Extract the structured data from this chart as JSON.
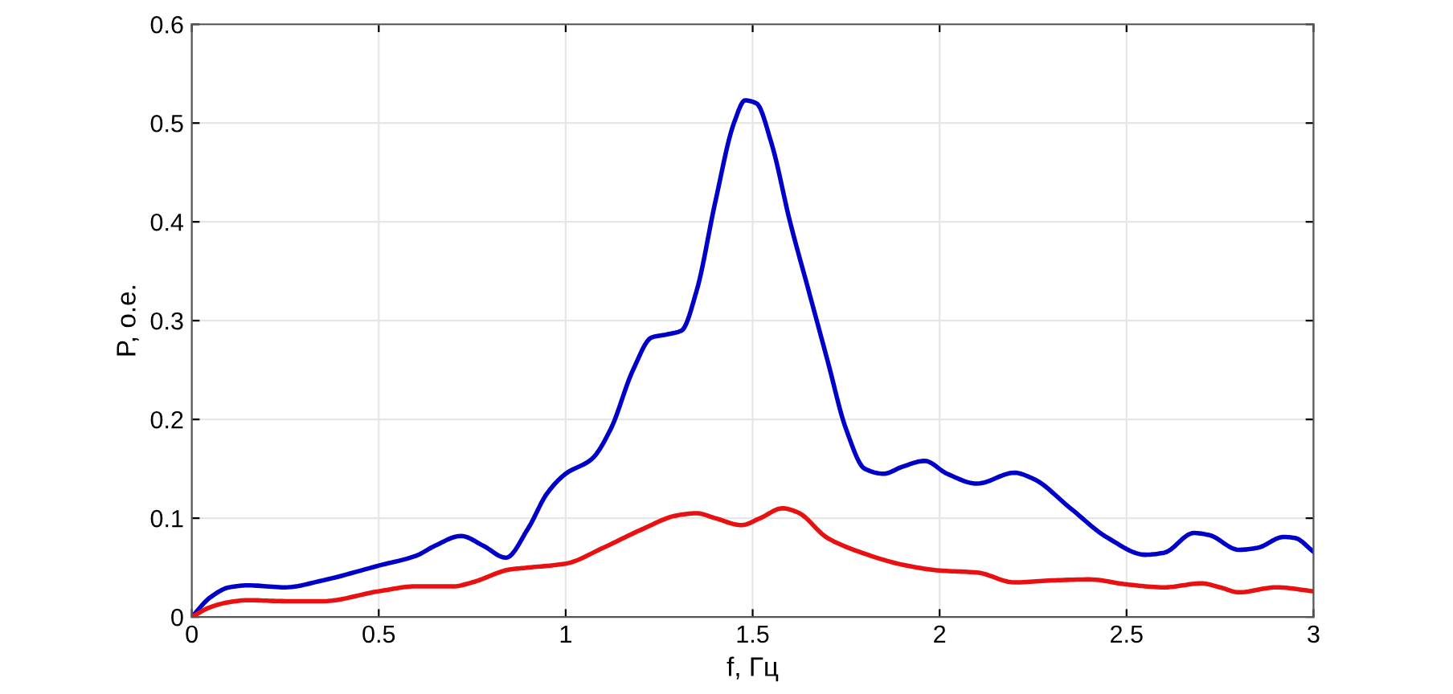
{
  "chart_data": {
    "type": "line",
    "xlabel": "f, Гц",
    "ylabel": "P, о.е.",
    "xlim": [
      0,
      3
    ],
    "ylim": [
      0,
      0.6
    ],
    "xticks": [
      0,
      0.5,
      1,
      1.5,
      2,
      2.5,
      3
    ],
    "yticks": [
      0,
      0.1,
      0.2,
      0.3,
      0.4,
      0.5,
      0.6
    ],
    "grid": true,
    "marker": "none",
    "line_style": "solid",
    "series": [
      {
        "color": "#0000c8",
        "x": [
          0,
          0.05,
          0.1,
          0.15,
          0.25,
          0.35,
          0.5,
          0.6,
          0.65,
          0.72,
          0.78,
          0.84,
          0.9,
          0.95,
          1.0,
          1.07,
          1.12,
          1.18,
          1.23,
          1.27,
          1.31,
          1.35,
          1.4,
          1.45,
          1.48,
          1.51,
          1.55,
          1.6,
          1.65,
          1.7,
          1.75,
          1.8,
          1.85,
          1.9,
          1.96,
          2.02,
          2.1,
          2.2,
          2.25,
          2.35,
          2.45,
          2.55,
          2.6,
          2.68,
          2.72,
          2.8,
          2.85,
          2.92,
          2.95,
          3.0
        ],
        "values": [
          0,
          0.02,
          0.03,
          0.032,
          0.03,
          0.037,
          0.052,
          0.062,
          0.072,
          0.082,
          0.072,
          0.06,
          0.09,
          0.125,
          0.145,
          0.16,
          0.19,
          0.25,
          0.283,
          0.286,
          0.29,
          0.33,
          0.42,
          0.5,
          0.523,
          0.52,
          0.48,
          0.4,
          0.33,
          0.26,
          0.19,
          0.15,
          0.145,
          0.152,
          0.158,
          0.145,
          0.135,
          0.146,
          0.14,
          0.11,
          0.08,
          0.063,
          0.065,
          0.085,
          0.083,
          0.068,
          0.07,
          0.081,
          0.08,
          0.066
        ]
      },
      {
        "color": "#e81010",
        "x": [
          0,
          0.05,
          0.1,
          0.15,
          0.25,
          0.35,
          0.5,
          0.6,
          0.7,
          0.75,
          0.85,
          0.9,
          1.0,
          1.1,
          1.2,
          1.3,
          1.35,
          1.4,
          1.47,
          1.52,
          1.58,
          1.62,
          1.7,
          1.8,
          1.9,
          2.0,
          2.1,
          2.2,
          2.3,
          2.4,
          2.5,
          2.6,
          2.7,
          2.75,
          2.8,
          2.9,
          3.0
        ],
        "values": [
          0,
          0.01,
          0.015,
          0.017,
          0.016,
          0.016,
          0.026,
          0.031,
          0.031,
          0.035,
          0.048,
          0.05,
          0.054,
          0.07,
          0.088,
          0.103,
          0.105,
          0.1,
          0.093,
          0.1,
          0.11,
          0.106,
          0.08,
          0.064,
          0.053,
          0.047,
          0.045,
          0.035,
          0.037,
          0.038,
          0.033,
          0.03,
          0.034,
          0.03,
          0.025,
          0.03,
          0.026
        ]
      }
    ]
  }
}
